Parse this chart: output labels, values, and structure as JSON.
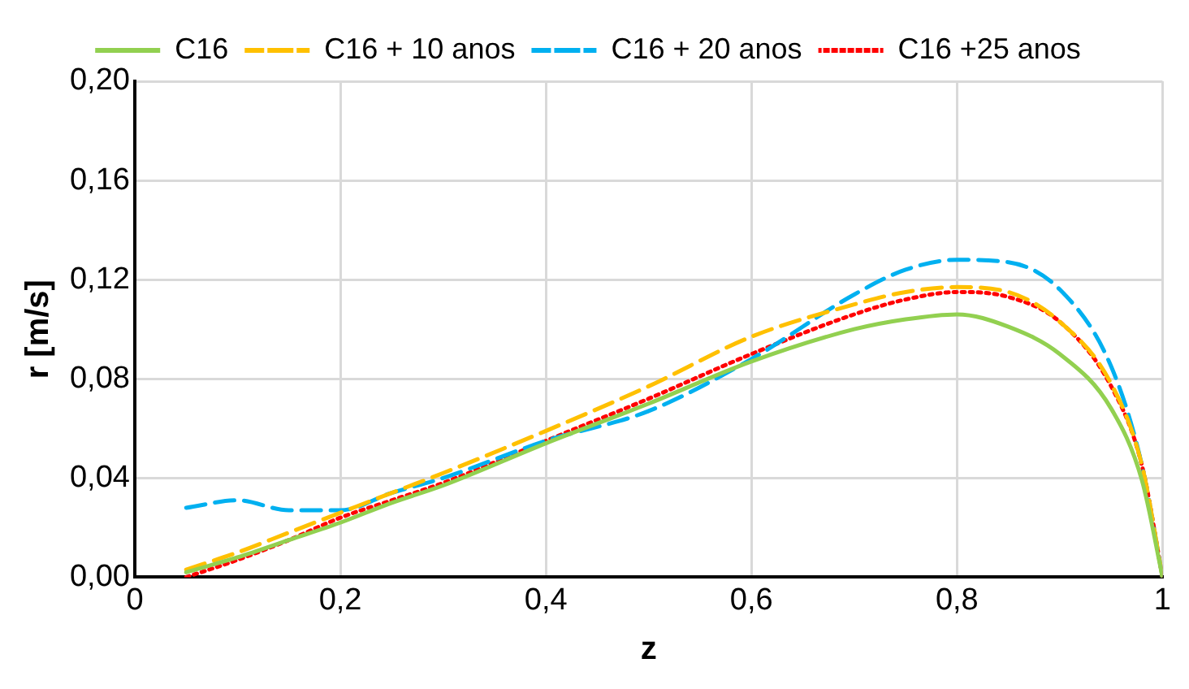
{
  "chart_data": {
    "type": "line",
    "xlabel": "z",
    "ylabel": "r [m/s]",
    "xlim": [
      0,
      1
    ],
    "ylim": [
      0,
      0.2
    ],
    "xticks": [
      0,
      {
        "value": 0.2,
        "label": "0,2"
      },
      {
        "value": 0.4,
        "label": "0,4"
      },
      {
        "value": 0.6,
        "label": "0,6"
      },
      {
        "value": 0.8,
        "label": "0,8"
      },
      1
    ],
    "yticks": [
      {
        "value": 0,
        "label": "0,00"
      },
      {
        "value": 0.04,
        "label": "0,04"
      },
      {
        "value": 0.08,
        "label": "0,08"
      },
      {
        "value": 0.12,
        "label": "0,12"
      },
      {
        "value": 0.16,
        "label": "0,16"
      },
      {
        "value": 0.2,
        "label": "0,20"
      }
    ],
    "grid": true,
    "legend": "top",
    "marker": "none",
    "x": [
      0.05,
      0.1,
      0.15,
      0.2,
      0.25,
      0.3,
      0.4,
      0.5,
      0.6,
      0.7,
      0.75,
      0.8,
      0.85,
      0.9,
      0.95,
      0.98,
      1
    ],
    "series": [
      {
        "name": "C16",
        "color": "#92d050",
        "line_style": "solid",
        "values": [
          0.002,
          0.008,
          0.015,
          0.022,
          0.03,
          0.037,
          0.054,
          0.07,
          0.087,
          0.1,
          0.104,
          0.106,
          0.101,
          0.09,
          0.068,
          0.039,
          0
        ]
      },
      {
        "name": "C16 + 10 anos",
        "color": "#ffc000",
        "line_style": "dashed",
        "values": [
          0.003,
          0.01,
          0.018,
          0.026,
          0.034,
          0.042,
          0.059,
          0.077,
          0.097,
          0.11,
          0.115,
          0.117,
          0.115,
          0.103,
          0.078,
          0.045,
          0
        ]
      },
      {
        "name": "C16 + 20 anos",
        "color": "#00b0f0",
        "line_style": "dashed",
        "values": [
          0.028,
          0.031,
          0.027,
          0.027,
          0.034,
          0.04,
          0.055,
          0.067,
          0.088,
          0.114,
          0.124,
          0.128,
          0.127,
          0.116,
          0.085,
          0.045,
          0
        ]
      },
      {
        "name": "C16 +25 anos",
        "color": "#ff0000",
        "line_style": "dotted",
        "values": [
          0,
          0.007,
          0.015,
          0.024,
          0.031,
          0.038,
          0.055,
          0.072,
          0.09,
          0.106,
          0.112,
          0.115,
          0.113,
          0.103,
          0.077,
          0.045,
          0
        ]
      }
    ]
  }
}
